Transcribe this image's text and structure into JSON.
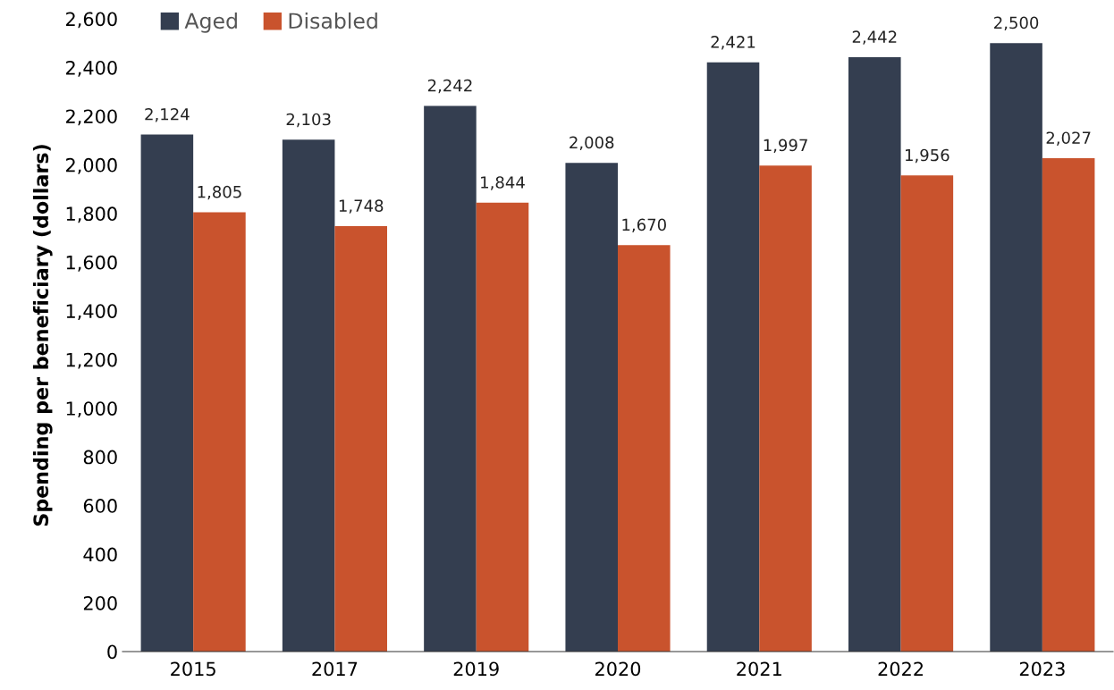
{
  "chart_data": {
    "type": "bar",
    "ylabel": "Spending per beneficiary (dollars)",
    "categories": [
      "2015",
      "2017",
      "2019",
      "2020",
      "2021",
      "2022",
      "2023"
    ],
    "series": [
      {
        "name": "Aged",
        "color": "#343e50",
        "values": [
          2124,
          2103,
          2242,
          2008,
          2421,
          2442,
          2500
        ]
      },
      {
        "name": "Disabled",
        "color": "#c9532d",
        "values": [
          1805,
          1748,
          1844,
          1670,
          1997,
          1956,
          2027
        ]
      }
    ],
    "ylim": [
      0,
      2600
    ],
    "yticks": [
      0,
      {
        "value": 200,
        "label": "200"
      },
      {
        "value": 400,
        "label": "400"
      },
      {
        "value": 600,
        "label": "600"
      },
      {
        "value": 800,
        "label": "800"
      },
      {
        "value": 1000,
        "label": "1,000"
      },
      {
        "value": 1200,
        "label": "1,200"
      },
      {
        "value": 1400,
        "label": "1,400"
      },
      {
        "value": 1600,
        "label": "1,600"
      },
      {
        "value": 1800,
        "label": "1,800"
      },
      {
        "value": 2000,
        "label": "2,000"
      },
      {
        "value": 2200,
        "label": "2,200"
      },
      {
        "value": 2400,
        "label": "2,400"
      },
      {
        "value": 2600,
        "label": "2,600"
      }
    ],
    "value_labels": [
      [
        "2,124",
        "2,103",
        "2,242",
        "2,008",
        "2,421",
        "2,442",
        "2,500"
      ],
      [
        "1,805",
        "1,748",
        "1,844",
        "1,670",
        "1,997",
        "1,956",
        "2,027"
      ]
    ],
    "grid": false,
    "legend": "top left"
  }
}
